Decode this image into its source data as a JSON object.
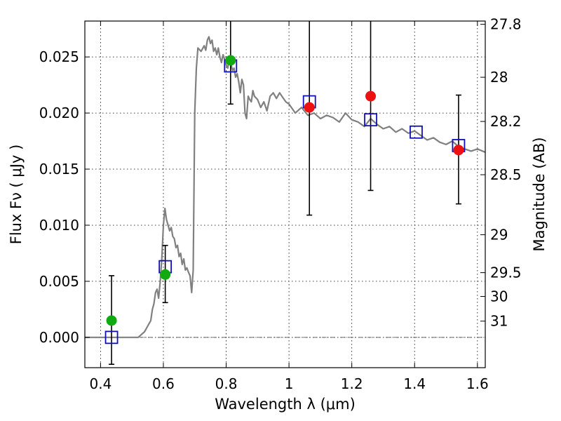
{
  "chart_data": {
    "type": "scatter",
    "xlabel": "Wavelength  λ (μm)",
    "ylabel": "Flux  Fν  ( μJy )",
    "ylabel_right": "Magnitude (AB)",
    "xlim": [
      0.35,
      1.625
    ],
    "ylim": [
      -0.0027,
      0.0282
    ],
    "grid": true,
    "x_ticks": [
      {
        "value": 0.4,
        "label": "0.4"
      },
      {
        "value": 0.6,
        "label": "0.6"
      },
      {
        "value": 0.8,
        "label": "0.8"
      },
      {
        "value": 1.0,
        "label": "1"
      },
      {
        "value": 1.2,
        "label": "1.2"
      },
      {
        "value": 1.4,
        "label": "1.4"
      },
      {
        "value": 1.6,
        "label": "1.6"
      }
    ],
    "y_ticks": [
      {
        "value": 0.0,
        "label": "0.000"
      },
      {
        "value": 0.005,
        "label": "0.005"
      },
      {
        "value": 0.01,
        "label": "0.010"
      },
      {
        "value": 0.015,
        "label": "0.015"
      },
      {
        "value": 0.02,
        "label": "0.020"
      },
      {
        "value": 0.025,
        "label": "0.025"
      }
    ],
    "right_ticks": [
      {
        "flux": 0.02791,
        "label": "27.8"
      },
      {
        "flux": 0.02319,
        "label": "28"
      },
      {
        "flux": 0.01925,
        "label": "28.2"
      },
      {
        "flux": 0.0145,
        "label": "28.5"
      },
      {
        "flux": 0.00915,
        "label": "29"
      },
      {
        "flux": 0.00577,
        "label": "29.5"
      },
      {
        "flux": 0.00365,
        "label": "30"
      },
      {
        "flux": 0.00145,
        "label": "31"
      }
    ],
    "model_spectrum": {
      "color": "#808080",
      "x": [
        0.35,
        0.4,
        0.45,
        0.5,
        0.52,
        0.54,
        0.56,
        0.565,
        0.57,
        0.575,
        0.58,
        0.585,
        0.59,
        0.595,
        0.6,
        0.605,
        0.61,
        0.615,
        0.62,
        0.625,
        0.63,
        0.635,
        0.64,
        0.645,
        0.65,
        0.655,
        0.66,
        0.665,
        0.67,
        0.675,
        0.68,
        0.685,
        0.69,
        0.695,
        0.7,
        0.705,
        0.71,
        0.72,
        0.73,
        0.735,
        0.74,
        0.745,
        0.75,
        0.755,
        0.76,
        0.765,
        0.77,
        0.775,
        0.78,
        0.785,
        0.79,
        0.795,
        0.8,
        0.805,
        0.81,
        0.815,
        0.82,
        0.825,
        0.83,
        0.835,
        0.84,
        0.845,
        0.85,
        0.855,
        0.86,
        0.865,
        0.87,
        0.875,
        0.88,
        0.885,
        0.89,
        0.9,
        0.91,
        0.92,
        0.93,
        0.94,
        0.95,
        0.96,
        0.97,
        0.98,
        0.99,
        1.0,
        1.02,
        1.04,
        1.06,
        1.08,
        1.1,
        1.12,
        1.14,
        1.16,
        1.18,
        1.2,
        1.22,
        1.24,
        1.26,
        1.28,
        1.3,
        1.32,
        1.34,
        1.36,
        1.38,
        1.4,
        1.42,
        1.44,
        1.46,
        1.48,
        1.5,
        1.52,
        1.54,
        1.56,
        1.58,
        1.6,
        1.625
      ],
      "y": [
        0.0,
        0.0,
        0.0,
        0.0,
        0.0,
        0.0005,
        0.0015,
        0.0025,
        0.003,
        0.004,
        0.0043,
        0.0035,
        0.005,
        0.007,
        0.01,
        0.0115,
        0.0105,
        0.01,
        0.0095,
        0.0098,
        0.009,
        0.0088,
        0.008,
        0.0082,
        0.0072,
        0.0075,
        0.0065,
        0.007,
        0.006,
        0.0062,
        0.0058,
        0.0055,
        0.004,
        0.006,
        0.02,
        0.024,
        0.0258,
        0.0255,
        0.026,
        0.0256,
        0.0265,
        0.0268,
        0.0262,
        0.0265,
        0.0255,
        0.0258,
        0.0252,
        0.0258,
        0.025,
        0.0245,
        0.0252,
        0.0248,
        0.0243,
        0.024,
        0.0248,
        0.0244,
        0.0238,
        0.024,
        0.0232,
        0.0235,
        0.0228,
        0.0218,
        0.023,
        0.0225,
        0.02,
        0.0195,
        0.0215,
        0.0212,
        0.021,
        0.022,
        0.0215,
        0.0212,
        0.0205,
        0.021,
        0.0202,
        0.0215,
        0.0218,
        0.0213,
        0.0218,
        0.0214,
        0.021,
        0.0208,
        0.02,
        0.0205,
        0.0198,
        0.02,
        0.0195,
        0.0198,
        0.0196,
        0.0192,
        0.02,
        0.0194,
        0.0192,
        0.0188,
        0.0195,
        0.019,
        0.0186,
        0.0188,
        0.0183,
        0.0186,
        0.0182,
        0.0184,
        0.018,
        0.0176,
        0.0178,
        0.0174,
        0.0172,
        0.0175,
        0.017,
        0.0168,
        0.0166,
        0.0168,
        0.0165
      ]
    },
    "model_photometry": {
      "color": "#1010bb",
      "marker": "open-square",
      "x": [
        0.435,
        0.606,
        0.814,
        1.065,
        1.26,
        1.405,
        1.54
      ],
      "y": [
        0.0,
        0.0063,
        0.0242,
        0.021,
        0.0194,
        0.0183,
        0.0171
      ]
    },
    "detections": {
      "color": "#11aa11",
      "marker": "circle",
      "x": [
        0.435,
        0.606,
        0.814
      ],
      "y": [
        0.0015,
        0.0056,
        0.0247
      ]
    },
    "measurements": {
      "color": "#ee1111",
      "marker": "circle",
      "x": [
        1.065,
        1.26,
        1.54
      ],
      "y": [
        0.0205,
        0.0215,
        0.0167
      ]
    },
    "error_bars": {
      "color": "#000000",
      "items": [
        {
          "x": 0.435,
          "low": -0.0024,
          "high": 0.0055
        },
        {
          "x": 0.606,
          "low": 0.0031,
          "high": 0.0082
        },
        {
          "x": 0.814,
          "low": 0.0208,
          "high": 0.0282
        },
        {
          "x": 1.065,
          "low": 0.0109,
          "high": 0.0282
        },
        {
          "x": 1.26,
          "low": 0.0131,
          "high": 0.0282
        },
        {
          "x": 1.405,
          "low": 0.0183,
          "high": 0.0183
        },
        {
          "x": 1.54,
          "low": 0.0119,
          "high": 0.0216
        }
      ]
    }
  }
}
